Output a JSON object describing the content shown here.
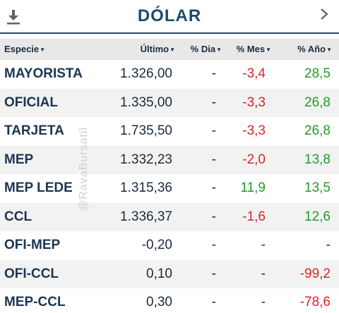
{
  "header": {
    "title": "DÓLAR",
    "download_icon": "download-icon",
    "next_icon": "chevron-right-icon"
  },
  "table": {
    "columns": [
      "Especie",
      "Último",
      "% Dia",
      "% Mes",
      "% Año"
    ],
    "rows": [
      {
        "name": "MAYORISTA",
        "ultimo": "1.326,00",
        "dia": "-",
        "mes": "-3,4",
        "ano": "28,5"
      },
      {
        "name": "OFICIAL",
        "ultimo": "1.335,00",
        "dia": "-",
        "mes": "-3,3",
        "ano": "26,8"
      },
      {
        "name": "TARJETA",
        "ultimo": "1.735,50",
        "dia": "-",
        "mes": "-3,3",
        "ano": "26,8"
      },
      {
        "name": "MEP",
        "ultimo": "1.332,23",
        "dia": "-",
        "mes": "-2,0",
        "ano": "13,8"
      },
      {
        "name": "MEP LEDE",
        "ultimo": "1.315,36",
        "dia": "-",
        "mes": "11,9",
        "ano": "13,5"
      },
      {
        "name": "CCL",
        "ultimo": "1.336,37",
        "dia": "-",
        "mes": "-1,6",
        "ano": "12,6"
      },
      {
        "name": "OFI-MEP",
        "ultimo": "-0,20",
        "dia": "-",
        "mes": "-",
        "ano": "-"
      },
      {
        "name": "OFI-CCL",
        "ultimo": "0,10",
        "dia": "-",
        "mes": "-",
        "ano": "-99,2"
      },
      {
        "name": "MEP-CCL",
        "ultimo": "0,30",
        "dia": "-",
        "mes": "-",
        "ano": "-78,6"
      }
    ]
  },
  "watermark": "@RavaBursatil",
  "colors": {
    "accent": "#1c4a6b",
    "negative": "#d8262b",
    "positive": "#239b2b",
    "header_bg": "#e8e8e8"
  }
}
